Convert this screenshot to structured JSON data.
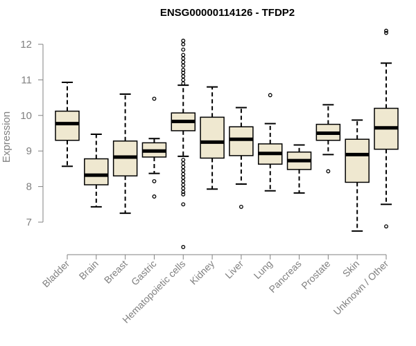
{
  "chart_data": {
    "type": "boxplot",
    "title": "ENSG00000114126 - TFDP2",
    "xlabel": "",
    "ylabel": "Expression",
    "ylim": [
      6.3,
      12.3
    ],
    "yticks": [
      "7",
      "8",
      "9",
      "10",
      "11",
      "12"
    ],
    "box_color": "#efe8d0",
    "categories": [
      "Bladder",
      "Brain",
      "Breast",
      "Gastric",
      "Hematopoietic cells",
      "Kidney",
      "Liver",
      "Lung",
      "Pancreas",
      "Prostate",
      "Skin",
      "Unknown / Other"
    ],
    "boxes": [
      {
        "name": "Bladder",
        "min": 8.57,
        "q1": 9.3,
        "median": 9.77,
        "q3": 10.12,
        "max": 10.93,
        "outliers": []
      },
      {
        "name": "Brain",
        "min": 7.43,
        "q1": 8.05,
        "median": 8.32,
        "q3": 8.78,
        "max": 9.47,
        "outliers": []
      },
      {
        "name": "Breast",
        "min": 7.25,
        "q1": 8.3,
        "median": 8.83,
        "q3": 9.28,
        "max": 10.6,
        "outliers": []
      },
      {
        "name": "Gastric",
        "min": 8.37,
        "q1": 8.83,
        "median": 9.0,
        "q3": 9.23,
        "max": 9.35,
        "outliers": [
          10.47,
          8.15,
          7.72
        ]
      },
      {
        "name": "Hematopoietic cells",
        "min": 8.85,
        "q1": 9.57,
        "median": 9.83,
        "q3": 10.07,
        "max": 10.85,
        "outliers": [
          12.1,
          12.0,
          11.85,
          11.7,
          11.6,
          11.5,
          11.4,
          11.28,
          11.2,
          11.1,
          11.0,
          10.9,
          8.75,
          8.65,
          8.55,
          8.45,
          8.35,
          8.25,
          8.15,
          8.05,
          7.95,
          7.85,
          7.78,
          7.5,
          6.3
        ]
      },
      {
        "name": "Kidney",
        "min": 7.93,
        "q1": 8.8,
        "median": 9.25,
        "q3": 9.95,
        "max": 10.8,
        "outliers": []
      },
      {
        "name": "Liver",
        "min": 8.07,
        "q1": 8.87,
        "median": 9.33,
        "q3": 9.68,
        "max": 10.22,
        "outliers": [
          7.43
        ]
      },
      {
        "name": "Lung",
        "min": 7.88,
        "q1": 8.63,
        "median": 8.93,
        "q3": 9.2,
        "max": 9.77,
        "outliers": [
          10.57
        ]
      },
      {
        "name": "Pancreas",
        "min": 7.82,
        "q1": 8.48,
        "median": 8.73,
        "q3": 8.97,
        "max": 9.17,
        "outliers": []
      },
      {
        "name": "Prostate",
        "min": 8.9,
        "q1": 9.3,
        "median": 9.5,
        "q3": 9.75,
        "max": 10.3,
        "outliers": [
          8.43
        ]
      },
      {
        "name": "Skin",
        "min": 6.75,
        "q1": 8.12,
        "median": 8.9,
        "q3": 9.33,
        "max": 9.87,
        "outliers": []
      },
      {
        "name": "Unknown / Other",
        "min": 7.5,
        "q1": 9.05,
        "median": 9.65,
        "q3": 10.2,
        "max": 11.47,
        "outliers": [
          12.38,
          12.32,
          6.88
        ]
      }
    ]
  }
}
